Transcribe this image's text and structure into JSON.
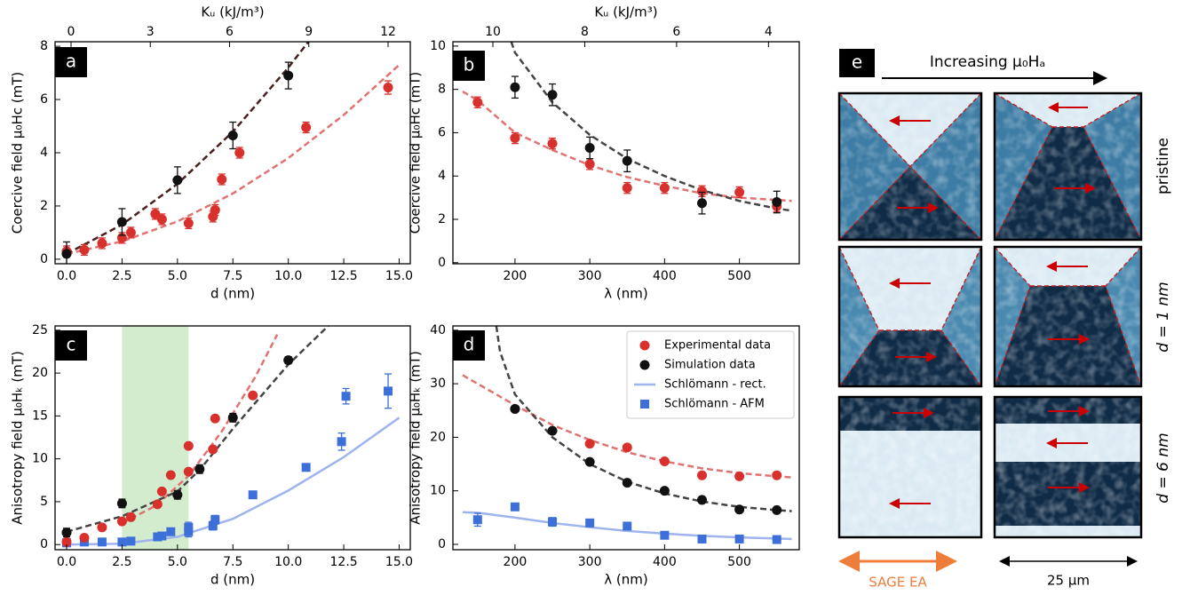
{
  "chart_data": [
    {
      "type": "scatter",
      "panel": "a",
      "xlabel": "d (nm)",
      "ylabel": "Coercive field μ₀Hc (mT)",
      "x2label": "Kᵤ (kJ/m³)",
      "xlim": [
        -0.52,
        15.5
      ],
      "ylim": [
        -0.17,
        8.17
      ],
      "x2lim": [
        -0.605,
        12.84
      ],
      "xticks": [
        {
          "value": 0,
          "label": "0.0"
        },
        2.5,
        {
          "value": 5,
          "label": "5.0"
        },
        7.5,
        {
          "value": 10,
          "label": "10.0"
        },
        12.5,
        {
          "value": 15,
          "label": "15.0"
        }
      ],
      "yticks": [
        0,
        2,
        4,
        6,
        8
      ],
      "x2ticks": [
        0,
        3,
        6,
        9,
        12
      ],
      "grid": false,
      "series": [
        {
          "kind": "line",
          "dash": true,
          "color": "#e07372",
          "x": [
            0,
            2.5,
            5,
            7.5,
            10,
            12.5,
            15
          ],
          "values": [
            0.2,
            0.67,
            1.42,
            2.47,
            3.8,
            5.42,
            7.3
          ]
        },
        {
          "kind": "line",
          "dash": true,
          "color": "#4a1f1f",
          "x": [
            0,
            2.5,
            5,
            7.5,
            10,
            11
          ],
          "values": [
            0.2,
            1.3,
            2.83,
            4.79,
            7.2,
            8.27
          ]
        },
        {
          "kind": "scatter",
          "marker": "circle",
          "color": "#d8312d",
          "x": [
            0,
            0.8,
            1.6,
            2.5,
            2.9,
            4,
            4.3,
            5.5,
            6.6,
            6.7,
            7,
            7.8,
            10.8,
            14.5
          ],
          "values": [
            0.3,
            0.35,
            0.6,
            0.8,
            1.0,
            1.7,
            1.5,
            1.35,
            1.6,
            1.85,
            3.0,
            4.0,
            4.95,
            6.45
          ],
          "errors": [
            0.2,
            0.2,
            0.2,
            0.2,
            0.2,
            0.2,
            0.2,
            0.2,
            0.2,
            0.2,
            0.2,
            0.2,
            0.2,
            0.25
          ]
        },
        {
          "kind": "scatter",
          "marker": "circle",
          "color": "#111111",
          "x": [
            0,
            2.5,
            5,
            7.5,
            10
          ],
          "values": [
            0.2,
            1.4,
            2.97,
            4.65,
            6.9
          ],
          "errors": [
            0.45,
            0.5,
            0.5,
            0.5,
            0.5
          ]
        }
      ]
    },
    {
      "type": "scatter",
      "panel": "b",
      "xlabel": "λ (nm)",
      "ylabel": "Coercive field μ₀Hc (mT)",
      "x2label": "Kᵤ (kJ/m³)",
      "xlim": [
        117,
        580
      ],
      "ylim": [
        -0.05,
        10.2
      ],
      "x2lim": [
        10.87,
        3.33
      ],
      "xticks": [
        200,
        300,
        400,
        500
      ],
      "yticks": [
        0,
        2,
        4,
        6,
        8,
        10
      ],
      "x2ticks": [
        10,
        8,
        6,
        4
      ],
      "grid": false,
      "series": [
        {
          "kind": "line",
          "dash": true,
          "color": "#e07372",
          "x": [
            130,
            150,
            200,
            250,
            300,
            350,
            400,
            450,
            500,
            550,
            570
          ],
          "values": [
            7.9,
            7.5,
            6.0,
            5.2,
            4.5,
            3.95,
            3.55,
            3.2,
            3.0,
            2.9,
            2.85
          ]
        },
        {
          "kind": "line",
          "dash": true,
          "color": "#444444",
          "x": [
            195,
            200,
            250,
            300,
            350,
            400,
            450,
            500,
            550,
            570
          ],
          "values": [
            10.2,
            9.7,
            7.4,
            5.9,
            4.8,
            4.0,
            3.35,
            2.85,
            2.5,
            2.4
          ]
        },
        {
          "kind": "scatter",
          "marker": "circle",
          "color": "#d8312d",
          "x": [
            150,
            200,
            250,
            300,
            350,
            400,
            450,
            500,
            550
          ],
          "values": [
            7.4,
            5.75,
            5.5,
            4.55,
            3.45,
            3.45,
            3.3,
            3.25,
            2.6
          ],
          "errors": [
            0.25,
            0.25,
            0.25,
            0.25,
            0.25,
            0.25,
            0.25,
            0.25,
            0.25
          ]
        },
        {
          "kind": "scatter",
          "marker": "circle",
          "color": "#111111",
          "x": [
            200,
            250,
            300,
            350,
            450,
            550
          ],
          "values": [
            8.1,
            7.75,
            5.3,
            4.7,
            2.75,
            2.8
          ],
          "errors": [
            0.5,
            0.5,
            0.5,
            0.5,
            0.5,
            0.5
          ]
        }
      ]
    },
    {
      "type": "scatter",
      "panel": "c",
      "xlabel": "d (nm)",
      "ylabel": "Anisotropy field μ₀Hₖ (mT)",
      "xlim": [
        -0.52,
        15.5
      ],
      "ylim": [
        -0.6,
        25.5
      ],
      "xticks": [
        {
          "value": 0,
          "label": "0.0"
        },
        2.5,
        {
          "value": 5,
          "label": "5.0"
        },
        7.5,
        {
          "value": 10,
          "label": "10.0"
        },
        12.5,
        {
          "value": 15,
          "label": "15.0"
        }
      ],
      "yticks": [
        0,
        5,
        10,
        15,
        20,
        25
      ],
      "grid": false,
      "highlight": [
        2.5,
        5.5
      ],
      "highlight_color": "#cbe9c6",
      "series": [
        {
          "kind": "line",
          "dash": false,
          "color": "#9fb4ef",
          "x": [
            0,
            2.5,
            5,
            7.5,
            10,
            12.5,
            15
          ],
          "values": [
            0,
            0.1,
            0.9,
            3,
            6.3,
            10.2,
            14.8
          ]
        },
        {
          "kind": "line",
          "dash": true,
          "color": "#e07372",
          "x": [
            2.5,
            4,
            5.5,
            7,
            8.5,
            9.5
          ],
          "values": [
            2.5,
            4.5,
            8,
            13.2,
            19.5,
            24.5
          ]
        },
        {
          "kind": "line",
          "dash": true,
          "color": "#444444",
          "x": [
            0,
            2.5,
            5,
            6,
            7.5,
            10,
            11.8
          ],
          "values": [
            1.5,
            3.3,
            6.2,
            8.7,
            13.5,
            21,
            25.5
          ]
        },
        {
          "kind": "scatter",
          "marker": "square",
          "color": "#3d6fd9",
          "x": [
            0,
            0.8,
            1.6,
            2.5,
            2.9,
            4.1,
            4.3,
            4.7,
            5.5,
            5.5,
            6.6,
            6.7,
            8.4,
            10.8,
            12.4,
            12.6,
            14.5
          ],
          "values": [
            0.2,
            0.3,
            0.3,
            0.3,
            0.4,
            0.9,
            1.0,
            1.5,
            1.5,
            2.0,
            2.2,
            2.9,
            5.8,
            9.0,
            12.0,
            17.3,
            17.9
          ],
          "errors": [
            0.2,
            0.2,
            0.2,
            0.2,
            0.2,
            0.3,
            0.3,
            0.3,
            0.6,
            0.6,
            0.5,
            0.5,
            0.3,
            0.3,
            1.0,
            0.9,
            2.0
          ]
        },
        {
          "kind": "scatter",
          "marker": "circle",
          "color": "#d8312d",
          "x": [
            0,
            0.8,
            1.6,
            2.5,
            2.9,
            4.1,
            4.3,
            4.7,
            5.5,
            5.5,
            6.6,
            6.7,
            8.4
          ],
          "values": [
            0.3,
            0.8,
            2.0,
            2.7,
            3.2,
            4.7,
            6.2,
            8.1,
            11.5,
            8.5,
            11.1,
            14.7,
            17.4
          ]
        },
        {
          "kind": "scatter",
          "marker": "circle",
          "color": "#111111",
          "x": [
            0,
            2.5,
            5,
            6,
            7.5,
            10
          ],
          "values": [
            1.4,
            4.8,
            5.8,
            8.8,
            14.8,
            21.5
          ],
          "errors": [
            0.5,
            0.5,
            0.5,
            0.5,
            0.5,
            0.4
          ]
        }
      ]
    },
    {
      "type": "scatter",
      "panel": "d",
      "xlabel": "λ (nm)",
      "ylabel": "Anisotropy field μ₀Hₖ (mT)",
      "xlim": [
        117,
        580
      ],
      "ylim": [
        -1,
        40.8
      ],
      "xticks": [
        200,
        300,
        400,
        500
      ],
      "yticks": [
        0,
        10,
        20,
        30,
        40
      ],
      "grid": false,
      "legend": "upper right",
      "series": [
        {
          "name": "Experimental data",
          "kind": "scatter",
          "marker": "circle",
          "color": "#d8312d",
          "x": [
            200,
            300,
            350,
            400,
            450,
            500,
            550
          ],
          "values": [
            25.3,
            18.8,
            18.1,
            15.5,
            12.9,
            12.7,
            12.9
          ]
        },
        {
          "name": "Simulation data",
          "kind": "scatter",
          "marker": "circle",
          "color": "#111111",
          "x": [
            200,
            250,
            300,
            350,
            400,
            450,
            500,
            550
          ],
          "values": [
            25.3,
            21.2,
            15.4,
            11.5,
            10.0,
            8.3,
            6.5,
            6.4
          ]
        },
        {
          "name": "Schlömann - rect.",
          "kind": "line",
          "dash": false,
          "color": "#9fb4ef",
          "x": [
            130,
            150,
            200,
            250,
            300,
            350,
            400,
            450,
            500,
            570
          ],
          "values": [
            6.0,
            5.9,
            5.0,
            4.0,
            3.2,
            2.5,
            2.0,
            1.6,
            1.3,
            1.0
          ]
        },
        {
          "name": "Schlömann - AFM",
          "kind": "scatter",
          "marker": "square",
          "color": "#3d6fd9",
          "x": [
            150,
            200,
            250,
            300,
            350,
            400,
            450,
            500,
            550
          ],
          "values": [
            4.6,
            7.0,
            4.2,
            4.0,
            3.4,
            1.7,
            1.0,
            1.0,
            0.9
          ],
          "errors": [
            1.2,
            0.5,
            0.8,
            0.5,
            0.5,
            0.5,
            0.4,
            0.4,
            0.4
          ]
        },
        {
          "kind": "line",
          "dash": true,
          "color": "#e07372",
          "x": [
            130,
            200,
            250,
            300,
            350,
            400,
            450,
            500,
            550,
            570
          ],
          "values": [
            31.6,
            26,
            22.3,
            19.5,
            17.2,
            15.5,
            14.2,
            13.3,
            12.7,
            12.5
          ]
        },
        {
          "kind": "line",
          "dash": true,
          "color": "#444444",
          "x": [
            175,
            180,
            200,
            250,
            300,
            350,
            400,
            450,
            500,
            550,
            570
          ],
          "values": [
            40.8,
            36,
            28,
            20,
            15,
            11.7,
            9.5,
            8,
            7,
            6.4,
            6.2
          ]
        }
      ]
    }
  ],
  "panel_e": {
    "panel": "e",
    "title": "Increasing μ₀Hₐ",
    "rows": [
      "pristine",
      "d = 1 nm",
      "d = 6 nm"
    ],
    "footer_left": "SAGE EA",
    "footer_right": "25 μm"
  }
}
